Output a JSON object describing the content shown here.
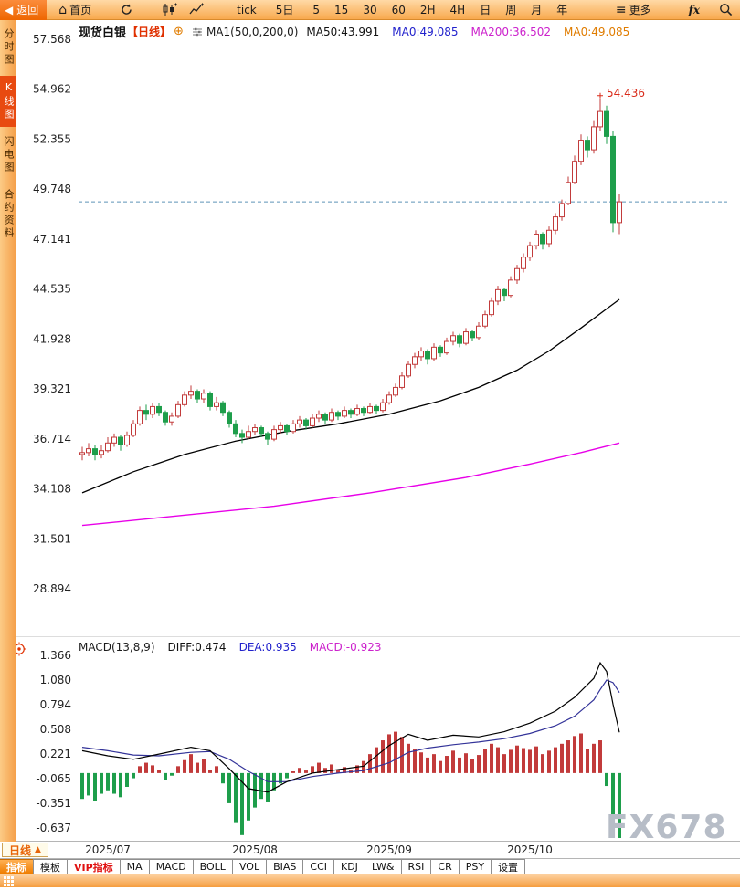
{
  "toolbar": {
    "back": "返回",
    "home": "首页",
    "tick": "tick",
    "five_day": "5日",
    "intervals": [
      "5",
      "15",
      "30",
      "60",
      "2H",
      "4H",
      "日",
      "周",
      "月",
      "年"
    ],
    "more": "更多",
    "fx": "fx"
  },
  "sidebar": {
    "items": [
      {
        "label": "分时图",
        "active": false
      },
      {
        "label": "K线图",
        "active": true
      },
      {
        "label": "闪电图",
        "active": false
      },
      {
        "label": "合约资料",
        "active": false
      }
    ]
  },
  "header": {
    "symbol": "现货白银",
    "period": "【日线】",
    "plus": "⊕",
    "ma_settings": "MA1(50,0,200,0)",
    "ma_values": [
      {
        "label": "MA50:43.991",
        "color": "#111111"
      },
      {
        "label": "MA0:49.085",
        "color": "#2222cc"
      },
      {
        "label": "MA200:36.502",
        "color": "#cc22cc"
      },
      {
        "label": "MA0:49.085",
        "color": "#e07c00"
      }
    ]
  },
  "macd_header": {
    "title": "MACD(13,8,9)",
    "values": [
      {
        "label": "DIFF:0.474",
        "color": "#111111"
      },
      {
        "label": "DEA:0.935",
        "color": "#2222cc"
      },
      {
        "label": "MACD:-0.923",
        "color": "#cc22cc"
      }
    ]
  },
  "bottom": {
    "period_tab": "日线",
    "collapse_glyph": "▲",
    "tabs": [
      {
        "label": "指标",
        "style": "active"
      },
      {
        "label": "模板",
        "style": ""
      },
      {
        "label": "VIP指标",
        "style": "vip"
      },
      {
        "label": "MA",
        "style": ""
      },
      {
        "label": "MACD",
        "style": ""
      },
      {
        "label": "BOLL",
        "style": ""
      },
      {
        "label": "VOL",
        "style": ""
      },
      {
        "label": "BIAS",
        "style": ""
      },
      {
        "label": "CCI",
        "style": ""
      },
      {
        "label": "KDJ",
        "style": ""
      },
      {
        "label": "LW&",
        "style": ""
      },
      {
        "label": "RSI",
        "style": ""
      },
      {
        "label": "CR",
        "style": ""
      },
      {
        "label": "PSY",
        "style": ""
      },
      {
        "label": "设置",
        "style": ""
      }
    ]
  },
  "watermark": "FX678",
  "chart_data": {
    "type": "candlestick",
    "title": "现货白银 日线",
    "price_axis": [
      57.568,
      54.962,
      52.355,
      49.748,
      47.141,
      44.535,
      41.928,
      39.321,
      36.714,
      34.108,
      31.501,
      28.894
    ],
    "macd_axis": [
      1.366,
      1.08,
      0.794,
      0.508,
      0.221,
      -0.065,
      -0.351,
      -0.637
    ],
    "x_labels": [
      {
        "label": "2025/07",
        "index": 4
      },
      {
        "label": "2025/08",
        "index": 27
      },
      {
        "label": "2025/09",
        "index": 48
      },
      {
        "label": "2025/10",
        "index": 70
      }
    ],
    "last_price_line": 49.085,
    "peak_annotation": {
      "text": "54.436",
      "index": 81,
      "price": 54.436
    },
    "colors": {
      "up": "#c23b3b",
      "down": "#1e9e4b",
      "ma50": "#000000",
      "ma200": "#e800e8",
      "diff": "#000000",
      "dea": "#333399",
      "dashed": "#5e93b8",
      "annotation": "#d92b1a"
    },
    "candles": [
      [
        35.9,
        36.3,
        35.6,
        36.0
      ],
      [
        36.0,
        36.5,
        35.8,
        36.2
      ],
      [
        36.2,
        36.4,
        35.6,
        35.9
      ],
      [
        35.9,
        36.4,
        35.7,
        36.1
      ],
      [
        36.1,
        36.8,
        36.0,
        36.5
      ],
      [
        36.5,
        37.0,
        36.3,
        36.8
      ],
      [
        36.8,
        36.9,
        36.1,
        36.4
      ],
      [
        36.4,
        37.1,
        36.3,
        36.9
      ],
      [
        36.9,
        37.7,
        36.8,
        37.5
      ],
      [
        37.5,
        38.4,
        37.4,
        38.2
      ],
      [
        38.2,
        38.5,
        37.7,
        38.0
      ],
      [
        38.0,
        38.6,
        37.8,
        38.4
      ],
      [
        38.4,
        38.6,
        37.9,
        38.1
      ],
      [
        38.1,
        38.2,
        37.4,
        37.6
      ],
      [
        37.6,
        38.1,
        37.4,
        37.9
      ],
      [
        37.9,
        38.7,
        37.8,
        38.5
      ],
      [
        38.5,
        39.2,
        38.4,
        39.0
      ],
      [
        39.0,
        39.5,
        38.8,
        39.2
      ],
      [
        39.2,
        39.3,
        38.6,
        38.8
      ],
      [
        38.8,
        39.3,
        38.6,
        39.1
      ],
      [
        39.1,
        39.2,
        38.2,
        38.4
      ],
      [
        38.4,
        38.9,
        38.2,
        38.6
      ],
      [
        38.6,
        38.7,
        37.9,
        38.1
      ],
      [
        38.1,
        38.2,
        37.3,
        37.5
      ],
      [
        37.5,
        37.7,
        36.8,
        37.0
      ],
      [
        37.0,
        37.2,
        36.5,
        36.8
      ],
      [
        36.8,
        37.4,
        36.7,
        37.1
      ],
      [
        37.1,
        37.5,
        36.9,
        37.3
      ],
      [
        37.3,
        37.4,
        36.8,
        37.0
      ],
      [
        37.0,
        37.1,
        36.4,
        36.7
      ],
      [
        36.7,
        37.4,
        36.6,
        37.2
      ],
      [
        37.2,
        37.6,
        37.0,
        37.4
      ],
      [
        37.4,
        37.5,
        36.9,
        37.1
      ],
      [
        37.1,
        37.7,
        37.0,
        37.5
      ],
      [
        37.5,
        37.9,
        37.3,
        37.7
      ],
      [
        37.7,
        37.8,
        37.2,
        37.4
      ],
      [
        37.4,
        38.0,
        37.3,
        37.8
      ],
      [
        37.8,
        38.2,
        37.6,
        38.0
      ],
      [
        38.0,
        38.1,
        37.5,
        37.7
      ],
      [
        37.7,
        38.3,
        37.6,
        38.1
      ],
      [
        38.1,
        38.2,
        37.7,
        37.9
      ],
      [
        37.9,
        38.4,
        37.8,
        38.2
      ],
      [
        38.2,
        38.3,
        37.8,
        38.0
      ],
      [
        38.0,
        38.5,
        37.9,
        38.3
      ],
      [
        38.3,
        38.4,
        37.9,
        38.1
      ],
      [
        38.1,
        38.6,
        38.0,
        38.4
      ],
      [
        38.4,
        38.5,
        38.0,
        38.2
      ],
      [
        38.2,
        38.8,
        38.1,
        38.6
      ],
      [
        38.6,
        39.2,
        38.5,
        39.0
      ],
      [
        39.0,
        39.6,
        38.9,
        39.4
      ],
      [
        39.4,
        40.2,
        39.3,
        40.0
      ],
      [
        40.0,
        40.8,
        39.9,
        40.6
      ],
      [
        40.6,
        41.2,
        40.4,
        41.0
      ],
      [
        41.0,
        41.5,
        40.8,
        41.3
      ],
      [
        41.3,
        41.4,
        40.6,
        40.9
      ],
      [
        40.9,
        41.7,
        40.8,
        41.5
      ],
      [
        41.5,
        41.6,
        41.0,
        41.2
      ],
      [
        41.2,
        42.0,
        41.1,
        41.8
      ],
      [
        41.8,
        42.3,
        41.6,
        42.1
      ],
      [
        42.1,
        42.2,
        41.5,
        41.7
      ],
      [
        41.7,
        42.5,
        41.6,
        42.3
      ],
      [
        42.3,
        42.4,
        41.8,
        42.0
      ],
      [
        42.0,
        42.8,
        41.9,
        42.6
      ],
      [
        42.6,
        43.4,
        42.5,
        43.2
      ],
      [
        43.2,
        44.1,
        43.1,
        43.9
      ],
      [
        43.9,
        44.7,
        43.7,
        44.5
      ],
      [
        44.5,
        44.6,
        43.9,
        44.2
      ],
      [
        44.2,
        45.2,
        44.1,
        45.0
      ],
      [
        45.0,
        45.8,
        44.8,
        45.6
      ],
      [
        45.6,
        46.4,
        45.4,
        46.2
      ],
      [
        46.2,
        47.0,
        46.0,
        46.8
      ],
      [
        46.8,
        47.6,
        46.6,
        47.4
      ],
      [
        47.4,
        47.5,
        46.6,
        46.9
      ],
      [
        46.9,
        47.8,
        46.7,
        47.6
      ],
      [
        47.6,
        48.5,
        47.4,
        48.3
      ],
      [
        48.3,
        49.2,
        48.1,
        49.0
      ],
      [
        49.0,
        50.4,
        48.9,
        50.1
      ],
      [
        50.1,
        51.5,
        50.0,
        51.2
      ],
      [
        51.2,
        52.6,
        51.0,
        52.3
      ],
      [
        52.3,
        52.5,
        51.4,
        51.8
      ],
      [
        51.8,
        53.3,
        51.6,
        53.0
      ],
      [
        53.0,
        54.436,
        52.8,
        53.8
      ],
      [
        53.8,
        54.1,
        52.1,
        52.5
      ],
      [
        52.5,
        52.8,
        47.5,
        48.0
      ],
      [
        48.0,
        49.5,
        47.4,
        49.085
      ]
    ],
    "ma50_points": [
      [
        0,
        33.9
      ],
      [
        8,
        35.0
      ],
      [
        16,
        35.9
      ],
      [
        24,
        36.6
      ],
      [
        32,
        37.1
      ],
      [
        40,
        37.5
      ],
      [
        48,
        38.0
      ],
      [
        56,
        38.7
      ],
      [
        62,
        39.4
      ],
      [
        68,
        40.3
      ],
      [
        73,
        41.3
      ],
      [
        78,
        42.5
      ],
      [
        82,
        43.5
      ],
      [
        84,
        43.991
      ]
    ],
    "ma200_points": [
      [
        0,
        32.2
      ],
      [
        15,
        32.7
      ],
      [
        30,
        33.2
      ],
      [
        45,
        33.9
      ],
      [
        60,
        34.7
      ],
      [
        70,
        35.4
      ],
      [
        78,
        36.0
      ],
      [
        84,
        36.502
      ]
    ],
    "macd": {
      "hist": [
        -0.3,
        -0.26,
        -0.32,
        -0.24,
        -0.2,
        -0.24,
        -0.28,
        -0.16,
        -0.06,
        0.08,
        0.12,
        0.09,
        0.04,
        -0.08,
        -0.03,
        0.08,
        0.15,
        0.22,
        0.12,
        0.16,
        0.04,
        0.08,
        -0.12,
        -0.35,
        -0.58,
        -0.72,
        -0.55,
        -0.4,
        -0.3,
        -0.34,
        -0.2,
        -0.12,
        -0.06,
        0.02,
        0.06,
        0.03,
        0.08,
        0.12,
        0.06,
        0.1,
        0.04,
        0.07,
        0.03,
        0.09,
        0.14,
        0.22,
        0.3,
        0.38,
        0.45,
        0.48,
        0.42,
        0.34,
        0.28,
        0.24,
        0.18,
        0.22,
        0.14,
        0.2,
        0.26,
        0.18,
        0.23,
        0.16,
        0.21,
        0.28,
        0.34,
        0.3,
        0.22,
        0.27,
        0.32,
        0.29,
        0.27,
        0.31,
        0.22,
        0.26,
        0.3,
        0.34,
        0.38,
        0.43,
        0.46,
        0.28,
        0.34,
        0.38,
        -0.15,
        -0.55,
        -0.92
      ],
      "diff_points": [
        [
          0,
          0.26
        ],
        [
          4,
          0.2
        ],
        [
          8,
          0.16
        ],
        [
          12,
          0.22
        ],
        [
          17,
          0.3
        ],
        [
          20,
          0.26
        ],
        [
          23,
          0.05
        ],
        [
          26,
          -0.18
        ],
        [
          29,
          -0.22
        ],
        [
          32,
          -0.1
        ],
        [
          36,
          0.0
        ],
        [
          40,
          0.04
        ],
        [
          44,
          0.08
        ],
        [
          48,
          0.32
        ],
        [
          51,
          0.45
        ],
        [
          54,
          0.38
        ],
        [
          58,
          0.44
        ],
        [
          62,
          0.42
        ],
        [
          66,
          0.48
        ],
        [
          70,
          0.58
        ],
        [
          74,
          0.72
        ],
        [
          77,
          0.88
        ],
        [
          80,
          1.1
        ],
        [
          81,
          1.28
        ],
        [
          82,
          1.18
        ],
        [
          83,
          0.8
        ],
        [
          84,
          0.474
        ]
      ],
      "dea_points": [
        [
          0,
          0.3
        ],
        [
          4,
          0.26
        ],
        [
          8,
          0.21
        ],
        [
          12,
          0.2
        ],
        [
          17,
          0.24
        ],
        [
          20,
          0.25
        ],
        [
          23,
          0.16
        ],
        [
          26,
          0.02
        ],
        [
          29,
          -0.1
        ],
        [
          32,
          -0.1
        ],
        [
          36,
          -0.04
        ],
        [
          40,
          0.0
        ],
        [
          44,
          0.03
        ],
        [
          48,
          0.12
        ],
        [
          51,
          0.24
        ],
        [
          54,
          0.29
        ],
        [
          58,
          0.33
        ],
        [
          62,
          0.36
        ],
        [
          66,
          0.4
        ],
        [
          70,
          0.46
        ],
        [
          74,
          0.55
        ],
        [
          77,
          0.66
        ],
        [
          80,
          0.85
        ],
        [
          81,
          0.97
        ],
        [
          82,
          1.08
        ],
        [
          83,
          1.05
        ],
        [
          84,
          0.935
        ]
      ]
    }
  }
}
